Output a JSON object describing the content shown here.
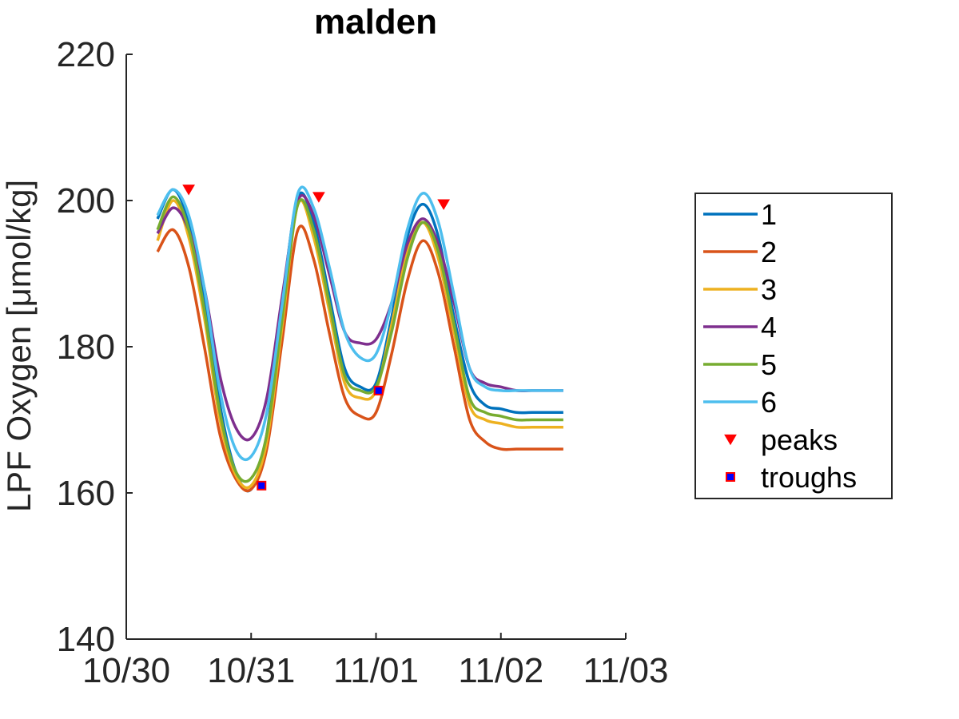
{
  "chart_data": {
    "type": "line",
    "title": "malden",
    "xlabel": "",
    "ylabel": "LPF Oxygen [μmol/kg]",
    "x_tick_labels": [
      "10/30",
      "10/31",
      "11/01",
      "11/02",
      "11/03"
    ],
    "xlim": [
      "2014-10-30T00:00",
      "2014-11-03T00:00"
    ],
    "ylim": [
      140,
      220
    ],
    "y_ticks": [
      140,
      160,
      180,
      200,
      220
    ],
    "grid": false,
    "legend_position": "right",
    "x": [
      "2014-10-30T06:00",
      "2014-10-30T09:00",
      "2014-10-30T12:00",
      "2014-10-30T15:00",
      "2014-10-30T18:00",
      "2014-10-30T21:00",
      "2014-10-31T00:00",
      "2014-10-31T03:00",
      "2014-10-31T06:00",
      "2014-10-31T09:00",
      "2014-10-31T12:00",
      "2014-10-31T15:00",
      "2014-10-31T18:00",
      "2014-10-31T21:00",
      "2014-11-01T00:00",
      "2014-11-01T03:00",
      "2014-11-01T06:00",
      "2014-11-01T09:00",
      "2014-11-01T12:00",
      "2014-11-01T15:00",
      "2014-11-01T18:00",
      "2014-11-01T21:00",
      "2014-11-02T00:00",
      "2014-11-02T03:00",
      "2014-11-02T06:00",
      "2014-11-02T09:00",
      "2014-11-02T12:00"
    ],
    "series": [
      {
        "name": "1",
        "color": "#0072BD",
        "values": [
          197.5,
          201.5,
          197,
          186,
          172,
          163,
          160.5,
          168,
          186,
          200.5,
          197,
          187,
          177,
          174.5,
          175,
          184,
          195,
          199.5,
          195,
          184,
          175,
          172,
          171.5,
          171,
          171,
          171,
          171
        ]
      },
      {
        "name": "2",
        "color": "#D95319",
        "values": [
          193,
          196,
          191,
          180,
          168,
          162,
          160.5,
          166,
          181,
          196,
          192,
          182,
          173,
          170.5,
          171,
          179,
          189,
          194.5,
          190,
          180,
          170,
          167,
          166,
          166,
          166,
          166,
          166
        ]
      },
      {
        "name": "3",
        "color": "#EDB120",
        "values": [
          194.5,
          200,
          195,
          184,
          170,
          162.5,
          161,
          167,
          183,
          199.5,
          195,
          185,
          175,
          173,
          174,
          183,
          193,
          197,
          192,
          182,
          172,
          170,
          169.5,
          169,
          169,
          169,
          169
        ]
      },
      {
        "name": "4",
        "color": "#7E2F8E",
        "values": [
          195.5,
          199,
          196,
          188,
          176,
          169,
          167.5,
          173,
          187,
          200,
          198,
          190,
          182,
          180.5,
          181,
          186,
          194,
          197.5,
          194,
          186,
          177,
          175,
          174.5,
          174,
          174,
          174,
          174
        ]
      },
      {
        "name": "5",
        "color": "#77AC30",
        "values": [
          196,
          200.5,
          196,
          185,
          171,
          163,
          162,
          168,
          184,
          199.5,
          196,
          186,
          176,
          174,
          174.5,
          182,
          192,
          197,
          193,
          183,
          173,
          171,
          170.5,
          170,
          170,
          170,
          170
        ]
      },
      {
        "name": "6",
        "color": "#4DBEEE",
        "values": [
          198,
          201.5,
          198,
          188,
          174,
          166,
          165,
          171,
          186,
          201,
          199,
          191,
          182,
          178.5,
          179,
          186,
          196,
          201,
          197,
          187,
          177,
          174.5,
          174,
          174,
          174,
          174,
          174
        ]
      }
    ],
    "peaks": {
      "name": "peaks",
      "color": "#FF0000",
      "x": [
        "2014-10-30T12:00",
        "2014-10-31T13:00",
        "2014-11-01T13:00"
      ],
      "y": [
        201.5,
        200.5,
        199.5
      ]
    },
    "troughs": {
      "name": "troughs",
      "color": "#0000FF",
      "edge_color": "#FF0000",
      "x": [
        "2014-10-31T02:00",
        "2014-11-01T00:30"
      ],
      "y": [
        161,
        174
      ]
    }
  }
}
